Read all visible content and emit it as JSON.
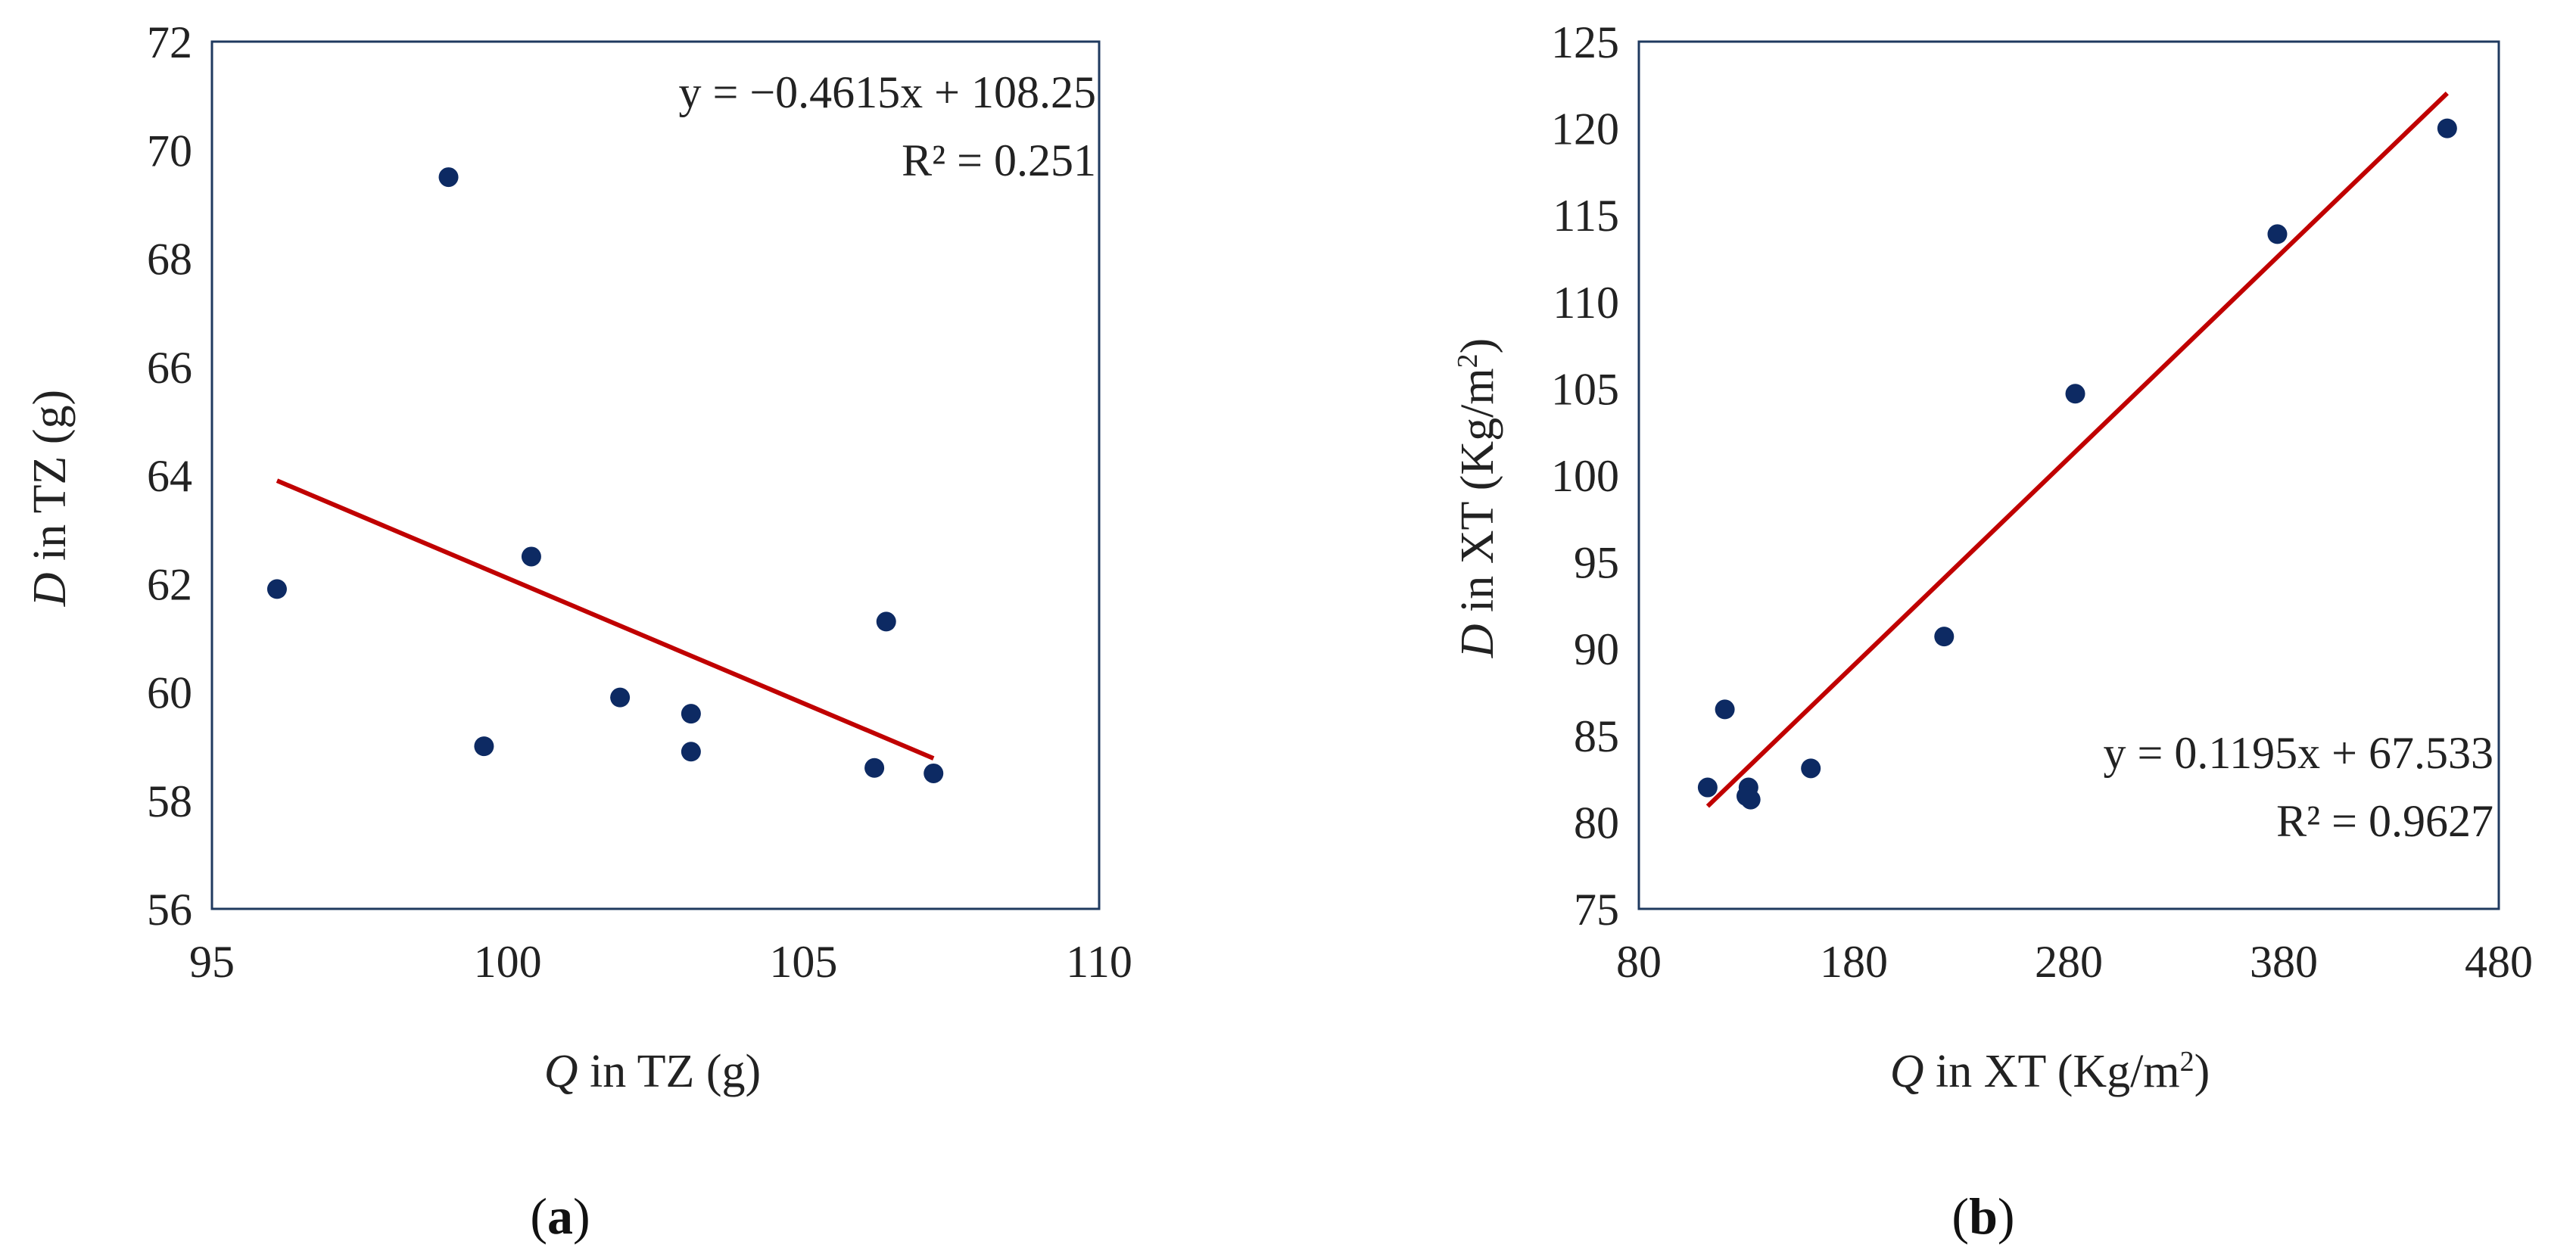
{
  "chart_data": [
    {
      "type": "scatter",
      "caption": {
        "open": "(",
        "letter": "a",
        "close": ")"
      },
      "xlabel": {
        "var": "Q",
        "text": " in TZ (g)"
      },
      "ylabel": {
        "var": "D",
        "text": " in TZ (g)"
      },
      "xlim": [
        95,
        110
      ],
      "ylim": [
        56,
        72
      ],
      "xticks": [
        "95",
        "100",
        "105",
        "110"
      ],
      "yticks": [
        "56",
        "58",
        "60",
        "62",
        "64",
        "66",
        "68",
        "70",
        "72"
      ],
      "points": [
        {
          "x": 96.1,
          "y": 61.9
        },
        {
          "x": 99.0,
          "y": 69.5
        },
        {
          "x": 99.6,
          "y": 59.0
        },
        {
          "x": 100.4,
          "y": 62.5
        },
        {
          "x": 101.9,
          "y": 59.9
        },
        {
          "x": 103.1,
          "y": 59.6
        },
        {
          "x": 103.1,
          "y": 58.9
        },
        {
          "x": 106.2,
          "y": 58.6
        },
        {
          "x": 106.4,
          "y": 61.3
        },
        {
          "x": 107.2,
          "y": 58.5
        }
      ],
      "trendline": {
        "slope": -0.4615,
        "intercept": 108.25,
        "x_start": 96.1,
        "x_end": 107.2
      },
      "equation": "y = −0.4615x + 108.25",
      "r2": "R² = 0.251",
      "colors": {
        "marker": "#0d2a63",
        "trend": "#c00000",
        "frame": "#1f3a5f"
      }
    },
    {
      "type": "scatter",
      "caption": {
        "open": "(",
        "letter": "b",
        "close": ")"
      },
      "xlabel": {
        "var": "Q",
        "text": " in XT (Kg/m",
        "sup": "2",
        "close": ")"
      },
      "ylabel": {
        "var": "D",
        "text": " in XT (Kg/m",
        "sup": "2",
        "close": ")"
      },
      "xlim": [
        80,
        480
      ],
      "ylim": [
        75,
        125
      ],
      "xticks": [
        "80",
        "180",
        "280",
        "380",
        "480"
      ],
      "yticks": [
        "75",
        "80",
        "85",
        "90",
        "95",
        "100",
        "105",
        "110",
        "115",
        "120",
        "125"
      ],
      "points": [
        {
          "x": 112,
          "y": 82.0
        },
        {
          "x": 120,
          "y": 86.5
        },
        {
          "x": 131,
          "y": 82.0
        },
        {
          "x": 130,
          "y": 81.5
        },
        {
          "x": 132,
          "y": 81.3
        },
        {
          "x": 160,
          "y": 83.1
        },
        {
          "x": 222,
          "y": 90.7
        },
        {
          "x": 283,
          "y": 104.7
        },
        {
          "x": 377,
          "y": 113.9
        },
        {
          "x": 456,
          "y": 120.0
        }
      ],
      "trendline": {
        "slope": 0.1195,
        "intercept": 67.533,
        "x_start": 112,
        "x_end": 456
      },
      "equation": "y = 0.1195x + 67.533",
      "r2": "R² = 0.9627",
      "colors": {
        "marker": "#0d2a63",
        "trend": "#c00000",
        "frame": "#1f3a5f"
      }
    }
  ]
}
